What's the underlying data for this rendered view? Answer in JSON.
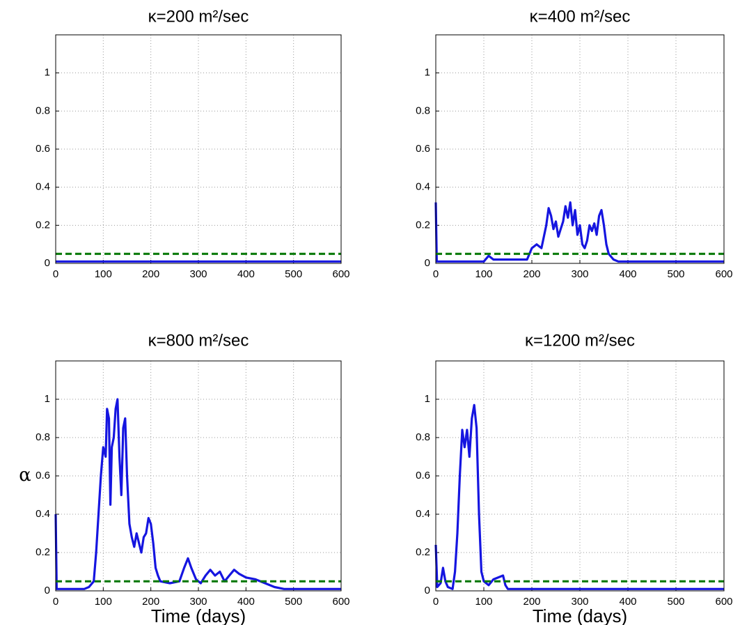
{
  "chart_data": [
    {
      "type": "line",
      "title": "κ=200 m²/sec",
      "xlim": [
        0,
        600
      ],
      "ylim": [
        0,
        1.2
      ],
      "xticks": [
        0,
        100,
        200,
        300,
        400,
        500,
        600
      ],
      "yticks": [
        0,
        0.2,
        0.4,
        0.6,
        0.8,
        1
      ],
      "grid": true,
      "series": [
        {
          "color": "#1515e0",
          "dash": false,
          "x": [
            0,
            100,
            200,
            300,
            400,
            500,
            600
          ],
          "values": [
            0.01,
            0.01,
            0.01,
            0.01,
            0.01,
            0.01,
            0.01
          ]
        },
        {
          "color": "#0a7a0a",
          "dash": true,
          "x": [
            0,
            600
          ],
          "values": [
            0.05,
            0.05
          ]
        }
      ]
    },
    {
      "type": "line",
      "title": "κ=400 m²/sec",
      "xlim": [
        0,
        600
      ],
      "ylim": [
        0,
        1.2
      ],
      "xticks": [
        0,
        100,
        200,
        300,
        400,
        500,
        600
      ],
      "yticks": [
        0,
        0.2,
        0.4,
        0.6,
        0.8,
        1
      ],
      "grid": true,
      "series": [
        {
          "color": "#1515e0",
          "dash": false,
          "x": [
            0,
            2,
            100,
            110,
            120,
            190,
            200,
            210,
            220,
            230,
            235,
            240,
            245,
            250,
            255,
            260,
            265,
            270,
            275,
            280,
            285,
            290,
            295,
            300,
            305,
            310,
            315,
            320,
            325,
            330,
            335,
            340,
            345,
            350,
            355,
            360,
            370,
            380,
            600
          ],
          "values": [
            0.32,
            0.01,
            0.01,
            0.04,
            0.02,
            0.02,
            0.08,
            0.1,
            0.08,
            0.2,
            0.29,
            0.25,
            0.18,
            0.22,
            0.14,
            0.18,
            0.22,
            0.3,
            0.24,
            0.32,
            0.2,
            0.28,
            0.15,
            0.2,
            0.1,
            0.08,
            0.12,
            0.2,
            0.17,
            0.21,
            0.15,
            0.25,
            0.28,
            0.2,
            0.1,
            0.05,
            0.02,
            0.01,
            0.01
          ]
        },
        {
          "color": "#0a7a0a",
          "dash": true,
          "x": [
            0,
            600
          ],
          "values": [
            0.05,
            0.05
          ]
        }
      ]
    },
    {
      "type": "line",
      "title": "κ=800 m²/sec",
      "xlabel": "Time (days)",
      "ylabel": "α",
      "xlim": [
        0,
        600
      ],
      "ylim": [
        0,
        1.2
      ],
      "xticks": [
        0,
        100,
        200,
        300,
        400,
        500,
        600
      ],
      "yticks": [
        0,
        0.2,
        0.4,
        0.6,
        0.8,
        1
      ],
      "grid": true,
      "series": [
        {
          "color": "#1515e0",
          "dash": false,
          "x": [
            0,
            2,
            60,
            70,
            80,
            85,
            90,
            95,
            100,
            105,
            108,
            112,
            115,
            118,
            122,
            126,
            130,
            134,
            138,
            142,
            146,
            150,
            155,
            160,
            165,
            170,
            175,
            180,
            185,
            190,
            195,
            200,
            205,
            210,
            215,
            220,
            240,
            260,
            270,
            278,
            285,
            295,
            305,
            315,
            325,
            335,
            345,
            355,
            365,
            375,
            385,
            400,
            420,
            440,
            460,
            480,
            600
          ],
          "values": [
            0.4,
            0.01,
            0.01,
            0.02,
            0.05,
            0.2,
            0.4,
            0.6,
            0.75,
            0.7,
            0.95,
            0.9,
            0.45,
            0.75,
            0.8,
            0.95,
            1.0,
            0.7,
            0.5,
            0.85,
            0.9,
            0.6,
            0.35,
            0.28,
            0.23,
            0.3,
            0.25,
            0.2,
            0.28,
            0.3,
            0.38,
            0.35,
            0.25,
            0.12,
            0.08,
            0.05,
            0.04,
            0.05,
            0.12,
            0.17,
            0.12,
            0.06,
            0.04,
            0.08,
            0.11,
            0.08,
            0.1,
            0.05,
            0.08,
            0.11,
            0.09,
            0.07,
            0.06,
            0.04,
            0.02,
            0.01,
            0.01
          ]
        },
        {
          "color": "#0a7a0a",
          "dash": true,
          "x": [
            0,
            600
          ],
          "values": [
            0.05,
            0.05
          ]
        }
      ]
    },
    {
      "type": "line",
      "title": "κ=1200 m²/sec",
      "xlabel": "Time (days)",
      "xlim": [
        0,
        600
      ],
      "ylim": [
        0,
        1.2
      ],
      "xticks": [
        0,
        100,
        200,
        300,
        400,
        500,
        600
      ],
      "yticks": [
        0,
        0.2,
        0.4,
        0.6,
        0.8,
        1
      ],
      "grid": true,
      "series": [
        {
          "color": "#1515e0",
          "dash": false,
          "x": [
            0,
            3,
            10,
            15,
            20,
            25,
            35,
            40,
            45,
            50,
            55,
            60,
            65,
            70,
            75,
            80,
            85,
            90,
            95,
            100,
            110,
            120,
            130,
            140,
            145,
            150,
            600
          ],
          "values": [
            0.24,
            0.02,
            0.04,
            0.12,
            0.05,
            0.02,
            0.01,
            0.1,
            0.3,
            0.6,
            0.84,
            0.75,
            0.84,
            0.7,
            0.9,
            0.97,
            0.85,
            0.4,
            0.1,
            0.05,
            0.03,
            0.06,
            0.07,
            0.08,
            0.03,
            0.01,
            0.01
          ]
        },
        {
          "color": "#0a7a0a",
          "dash": true,
          "x": [
            0,
            600
          ],
          "values": [
            0.05,
            0.05
          ]
        }
      ]
    }
  ]
}
